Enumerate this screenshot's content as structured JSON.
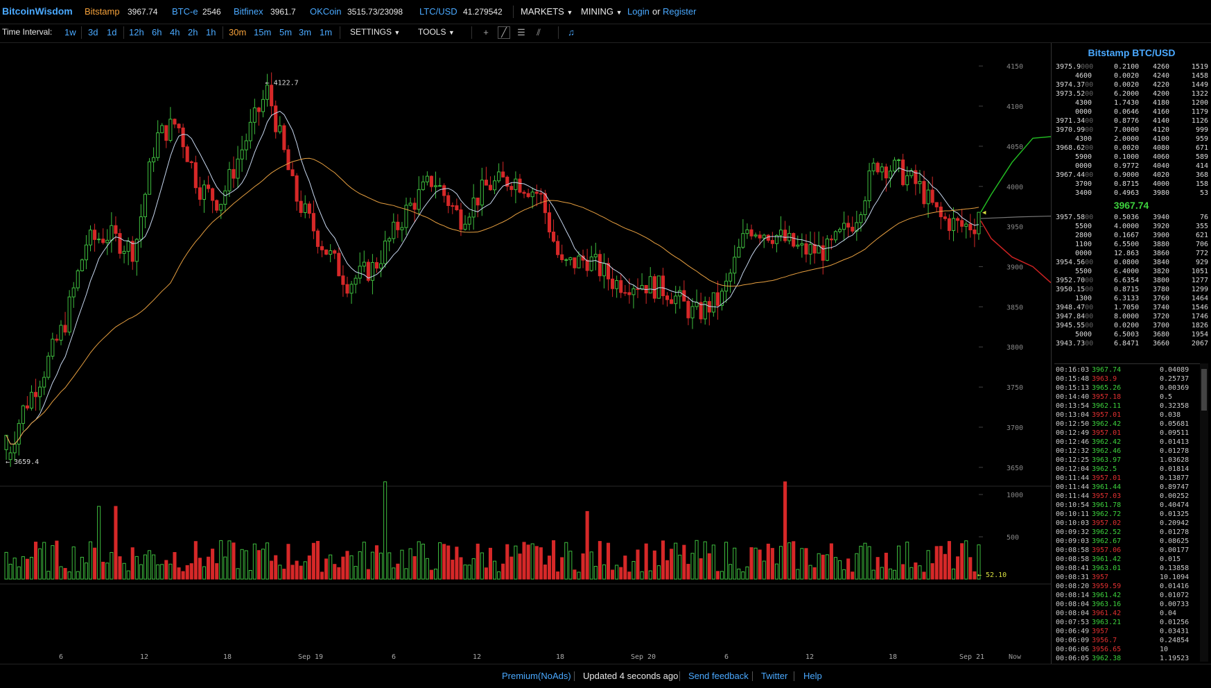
{
  "header": {
    "brand": "BitcoinWisdom",
    "tickers": [
      {
        "name": "Bitstamp",
        "value": "3967.74",
        "color": "orange"
      },
      {
        "name": "BTC-e",
        "value": "2546",
        "color": "blue"
      },
      {
        "name": "Bitfinex",
        "value": "3961.7",
        "color": "blue"
      },
      {
        "name": "OKCoin",
        "value": "3515.73/23098",
        "color": "blue"
      },
      {
        "name": "LTC/USD",
        "value": "41.279542",
        "color": "blue"
      }
    ],
    "markets_label": "MARKETS",
    "mining_label": "MINING",
    "login_label": "Login",
    "or_label": "or",
    "register_label": "Register"
  },
  "toolbar": {
    "time_interval_label": "Time Interval:",
    "intervals": [
      "1w",
      "3d",
      "1d",
      "12h",
      "6h",
      "4h",
      "2h",
      "1h",
      "30m",
      "15m",
      "5m",
      "3m",
      "1m"
    ],
    "active_interval": "30m",
    "settings_label": "SETTINGS",
    "tools_label": "TOOLS"
  },
  "chart": {
    "price_ticks": [
      "4150",
      "4100",
      "4050",
      "4000",
      "3950",
      "3900",
      "3850",
      "3800",
      "3750",
      "3700",
      "3650"
    ],
    "volume_ticks": [
      "1000",
      "500"
    ],
    "x_labels": [
      "6",
      "12",
      "18",
      "Sep 19",
      "6",
      "12",
      "18",
      "Sep 20",
      "6",
      "12",
      "18",
      "Sep 21",
      "Now"
    ],
    "high_label": "4122.7",
    "low_label": "3659.4",
    "current_volume": "52.10"
  },
  "chart_data": {
    "type": "candlestick",
    "price_range": [
      3630,
      4170
    ],
    "high": 4122.7,
    "low": 3659.4,
    "last_price": 3967.74,
    "volume_current": 52.1,
    "colors": {
      "up": "#3fbf3f",
      "down": "#d62828",
      "ma_short": "#c8d8f0",
      "ma_long": "#e8a040"
    }
  },
  "sidebar": {
    "title": "Bitstamp BTC/USD",
    "asks": [
      [
        "3975.9",
        "000",
        "0.2100",
        "4260",
        "1519"
      ],
      [
        "",
        "4600",
        "0.0020",
        "4240",
        "1458"
      ],
      [
        "3974.37",
        "00",
        "0.0020",
        "4220",
        "1449"
      ],
      [
        "3973.52",
        "00",
        "6.2000",
        "4200",
        "1322"
      ],
      [
        "",
        "4300",
        "1.7430",
        "4180",
        "1200"
      ],
      [
        "",
        "0000",
        "0.0646",
        "4160",
        "1179"
      ],
      [
        "3971.34",
        "00",
        "0.8776",
        "4140",
        "1126"
      ],
      [
        "3970.99",
        "00",
        "7.0000",
        "4120",
        "999"
      ],
      [
        "",
        "4300",
        "2.0000",
        "4100",
        "959"
      ],
      [
        "3968.62",
        "00",
        "0.0020",
        "4080",
        "671"
      ],
      [
        "",
        "5900",
        "0.1000",
        "4060",
        "589"
      ],
      [
        "",
        "0000",
        "0.9772",
        "4040",
        "414"
      ],
      [
        "3967.44",
        "00",
        "0.9000",
        "4020",
        "368"
      ],
      [
        "",
        "3700",
        "0.8715",
        "4000",
        "158"
      ],
      [
        "",
        "3400",
        "0.4963",
        "3980",
        "53"
      ]
    ],
    "last_price": "3967.74",
    "bids": [
      [
        "3957.58",
        "00",
        "0.5036",
        "3940",
        "76"
      ],
      [
        "",
        "5500",
        "4.0000",
        "3920",
        "355"
      ],
      [
        "",
        "2800",
        "0.1667",
        "3900",
        "621"
      ],
      [
        "",
        "1100",
        "6.5500",
        "3880",
        "706"
      ],
      [
        "",
        "0000",
        "12.863",
        "3860",
        "772"
      ],
      [
        "3954.56",
        "00",
        "0.0800",
        "3840",
        "929"
      ],
      [
        "",
        "5500",
        "6.4000",
        "3820",
        "1051"
      ],
      [
        "3952.70",
        "00",
        "6.6354",
        "3800",
        "1277"
      ],
      [
        "3950.15",
        "00",
        "0.8715",
        "3780",
        "1299"
      ],
      [
        "",
        "1300",
        "6.3133",
        "3760",
        "1464"
      ],
      [
        "3948.47",
        "00",
        "1.7050",
        "3740",
        "1546"
      ],
      [
        "3947.84",
        "00",
        "8.0000",
        "3720",
        "1746"
      ],
      [
        "3945.55",
        "00",
        "0.0200",
        "3700",
        "1826"
      ],
      [
        "",
        "5000",
        "6.5003",
        "3680",
        "1954"
      ],
      [
        "3943.73",
        "00",
        "6.8471",
        "3660",
        "2067"
      ]
    ],
    "trades": [
      [
        "00:16:03",
        "3967.74",
        "0.04089",
        "up"
      ],
      [
        "00:15:48",
        "3963.9",
        "0.25737",
        "dn"
      ],
      [
        "00:15:13",
        "3965.26",
        "0.00369",
        "up"
      ],
      [
        "00:14:40",
        "3957.18",
        "0.5",
        "dn"
      ],
      [
        "00:13:54",
        "3962.11",
        "0.32358",
        "up"
      ],
      [
        "00:13:04",
        "3957.01",
        "0.038",
        "dn"
      ],
      [
        "00:12:50",
        "3962.42",
        "0.05681",
        "up"
      ],
      [
        "00:12:49",
        "3957.01",
        "0.09511",
        "dn"
      ],
      [
        "00:12:46",
        "3962.42",
        "0.01413",
        "up"
      ],
      [
        "00:12:32",
        "3962.46",
        "0.01278",
        "up"
      ],
      [
        "00:12:25",
        "3963.97",
        "1.03628",
        "up"
      ],
      [
        "00:12:04",
        "3962.5",
        "0.01814",
        "up"
      ],
      [
        "00:11:44",
        "3957.01",
        "0.13877",
        "dn"
      ],
      [
        "00:11:44",
        "3961.44",
        "0.89747",
        "up"
      ],
      [
        "00:11:44",
        "3957.03",
        "0.00252",
        "dn"
      ],
      [
        "00:10:54",
        "3961.78",
        "0.40474",
        "up"
      ],
      [
        "00:10:11",
        "3962.72",
        "0.01325",
        "up"
      ],
      [
        "00:10:03",
        "3957.02",
        "0.20942",
        "dn"
      ],
      [
        "00:09:32",
        "3962.52",
        "0.01278",
        "up"
      ],
      [
        "00:09:03",
        "3962.67",
        "0.08625",
        "up"
      ],
      [
        "00:08:58",
        "3957.06",
        "0.00177",
        "dn"
      ],
      [
        "00:08:58",
        "3961.42",
        "0.015",
        "up"
      ],
      [
        "00:08:41",
        "3963.01",
        "0.13858",
        "up"
      ],
      [
        "00:08:31",
        "3957",
        "10.1094",
        "dn"
      ],
      [
        "00:08:20",
        "3959.59",
        "0.01416",
        "dn"
      ],
      [
        "00:08:14",
        "3961.42",
        "0.01072",
        "up"
      ],
      [
        "00:08:04",
        "3963.16",
        "0.00733",
        "up"
      ],
      [
        "00:08:04",
        "3961.42",
        "0.04",
        "dn"
      ],
      [
        "00:07:53",
        "3963.21",
        "0.01256",
        "up"
      ],
      [
        "00:06:49",
        "3957",
        "0.03431",
        "dn"
      ],
      [
        "00:06:09",
        "3956.7",
        "0.24854",
        "dn"
      ],
      [
        "00:06:06",
        "3956.65",
        "10",
        "dn"
      ],
      [
        "00:06:05",
        "3962.38",
        "1.19523",
        "up"
      ]
    ]
  },
  "footer": {
    "premium": "Premium(NoAds)",
    "updated": "Updated 4 seconds ago",
    "feedback": "Send feedback",
    "twitter": "Twitter",
    "help": "Help"
  }
}
